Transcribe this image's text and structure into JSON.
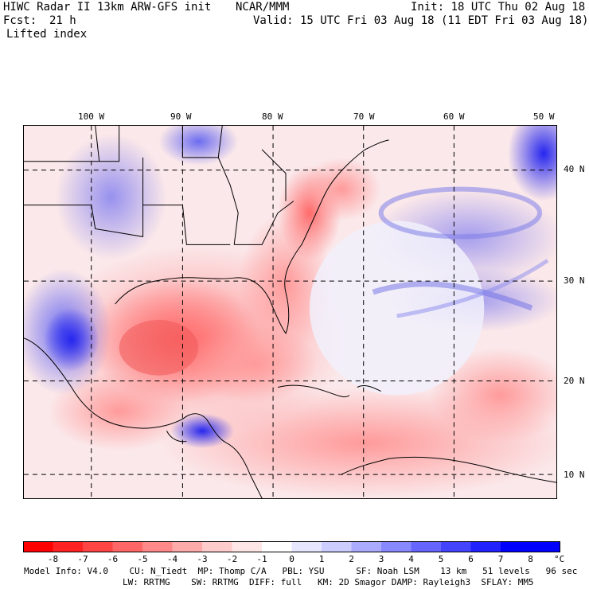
{
  "header": {
    "title": "HIWC Radar II 13km ARW-GFS init",
    "org": "NCAR/MMM",
    "init": "Init: 18 UTC Thu 02 Aug 18",
    "fcst_label": "Fcst:",
    "fcst_value": "21 h",
    "valid": "Valid: 15 UTC Fri 03 Aug 18 (11 EDT Fri 03 Aug 18)",
    "field": "Lifted index"
  },
  "map": {
    "lon_labels": [
      "100 W",
      "90 W",
      "80 W",
      "70 W",
      "60 W",
      "50 W"
    ],
    "lat_labels": [
      "40 N",
      "30 N",
      "20 N",
      "10 N"
    ]
  },
  "colorbar": {
    "ticks": [
      "-8",
      "-7",
      "-6",
      "-5",
      "-4",
      "-3",
      "-2",
      "-1",
      "0",
      "1",
      "2",
      "3",
      "4",
      "5",
      "6",
      "7",
      "8"
    ],
    "unit": "°C",
    "colors": [
      "#ff0000",
      "#ff2222",
      "#ff4444",
      "#ff6666",
      "#ff8888",
      "#ffaaaa",
      "#ffcccc",
      "#ffe6e6",
      "#ffffff",
      "#e6e6ff",
      "#ccccff",
      "#aaaaff",
      "#8888ff",
      "#6666ff",
      "#4444ff",
      "#2222ff",
      "#0000ff"
    ]
  },
  "footer": {
    "line1": "Model Info: V4.0    CU: N_Tiedt  MP: Thomp C/A   PBL: YSU      SF: Noah LSM    13 km   51 levels   96 sec",
    "line2": "LW: RRTMG    SW: RRTMG  DIFF: full   KM: 2D Smagor DAMP: Rayleigh3  SFLAY: MM5"
  }
}
